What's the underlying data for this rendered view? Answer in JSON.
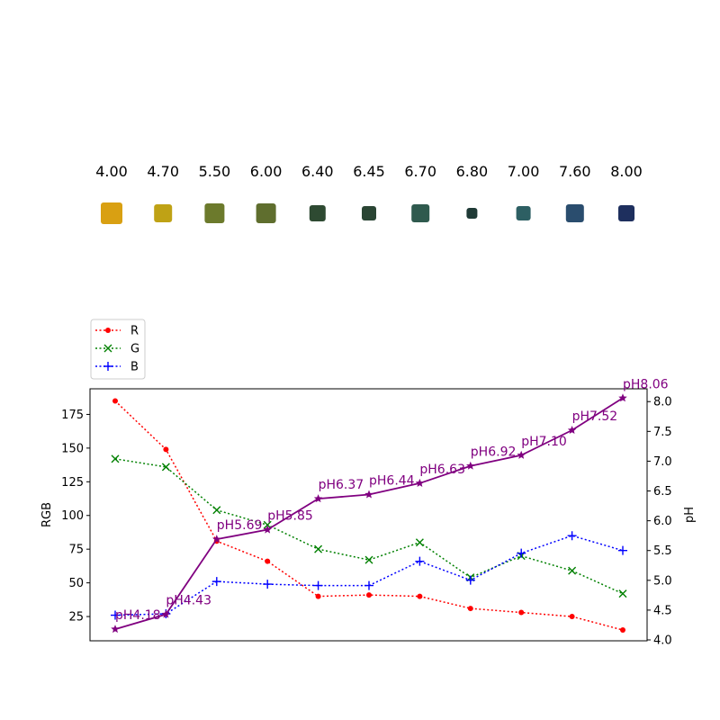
{
  "chart_data": {
    "type": "line",
    "strip": {
      "labels": [
        "4.00",
        "4.70",
        "5.50",
        "6.00",
        "6.40",
        "6.45",
        "6.70",
        "6.80",
        "7.00",
        "7.60",
        "8.00"
      ],
      "colors": [
        "#d9a012",
        "#bfa215",
        "#6c7a2c",
        "#5f6e2e",
        "#2e4a32",
        "#2a4534",
        "#2f5a4e",
        "#1f3a36",
        "#2d5f63",
        "#2a4d6e",
        "#1e2f5e"
      ]
    },
    "legend": [
      "R",
      "G",
      "B"
    ],
    "series": [
      {
        "name": "R",
        "color": "#ff0000",
        "marker": "dot",
        "values": [
          185,
          149,
          81,
          66,
          40,
          41,
          40,
          31,
          28,
          25,
          15
        ]
      },
      {
        "name": "G",
        "color": "#008000",
        "marker": "x",
        "values": [
          142,
          136,
          104,
          93,
          75,
          67,
          80,
          54,
          70,
          59,
          42
        ]
      },
      {
        "name": "B",
        "color": "#0000ff",
        "marker": "plus",
        "values": [
          26,
          27,
          51,
          49,
          48,
          48,
          66,
          52,
          72,
          85,
          74
        ]
      }
    ],
    "ph_series": {
      "color": "#800080",
      "values": [
        4.18,
        4.43,
        5.69,
        5.85,
        6.37,
        6.44,
        6.63,
        6.92,
        7.1,
        7.52,
        8.06
      ],
      "labels": [
        "pH4.18",
        "pH4.43",
        "pH5.69",
        "pH5.85",
        "pH6.37",
        "pH6.44",
        "pH6.63",
        "pH6.92",
        "pH7.10",
        "pH7.52",
        "pH8.06"
      ]
    },
    "ylabel_left": "RGB",
    "ylabel_right": "pH",
    "ylim_left": [
      7,
      194
    ],
    "ylim_right": [
      3.985,
      8.215
    ],
    "yticks_left": [
      "25",
      "50",
      "75",
      "100",
      "125",
      "150",
      "175"
    ],
    "yticks_right": [
      "4.0",
      "4.5",
      "5.0",
      "5.5",
      "6.0",
      "6.5",
      "7.0",
      "7.5",
      "8.0"
    ],
    "legend_position": "top-left, above plot"
  }
}
